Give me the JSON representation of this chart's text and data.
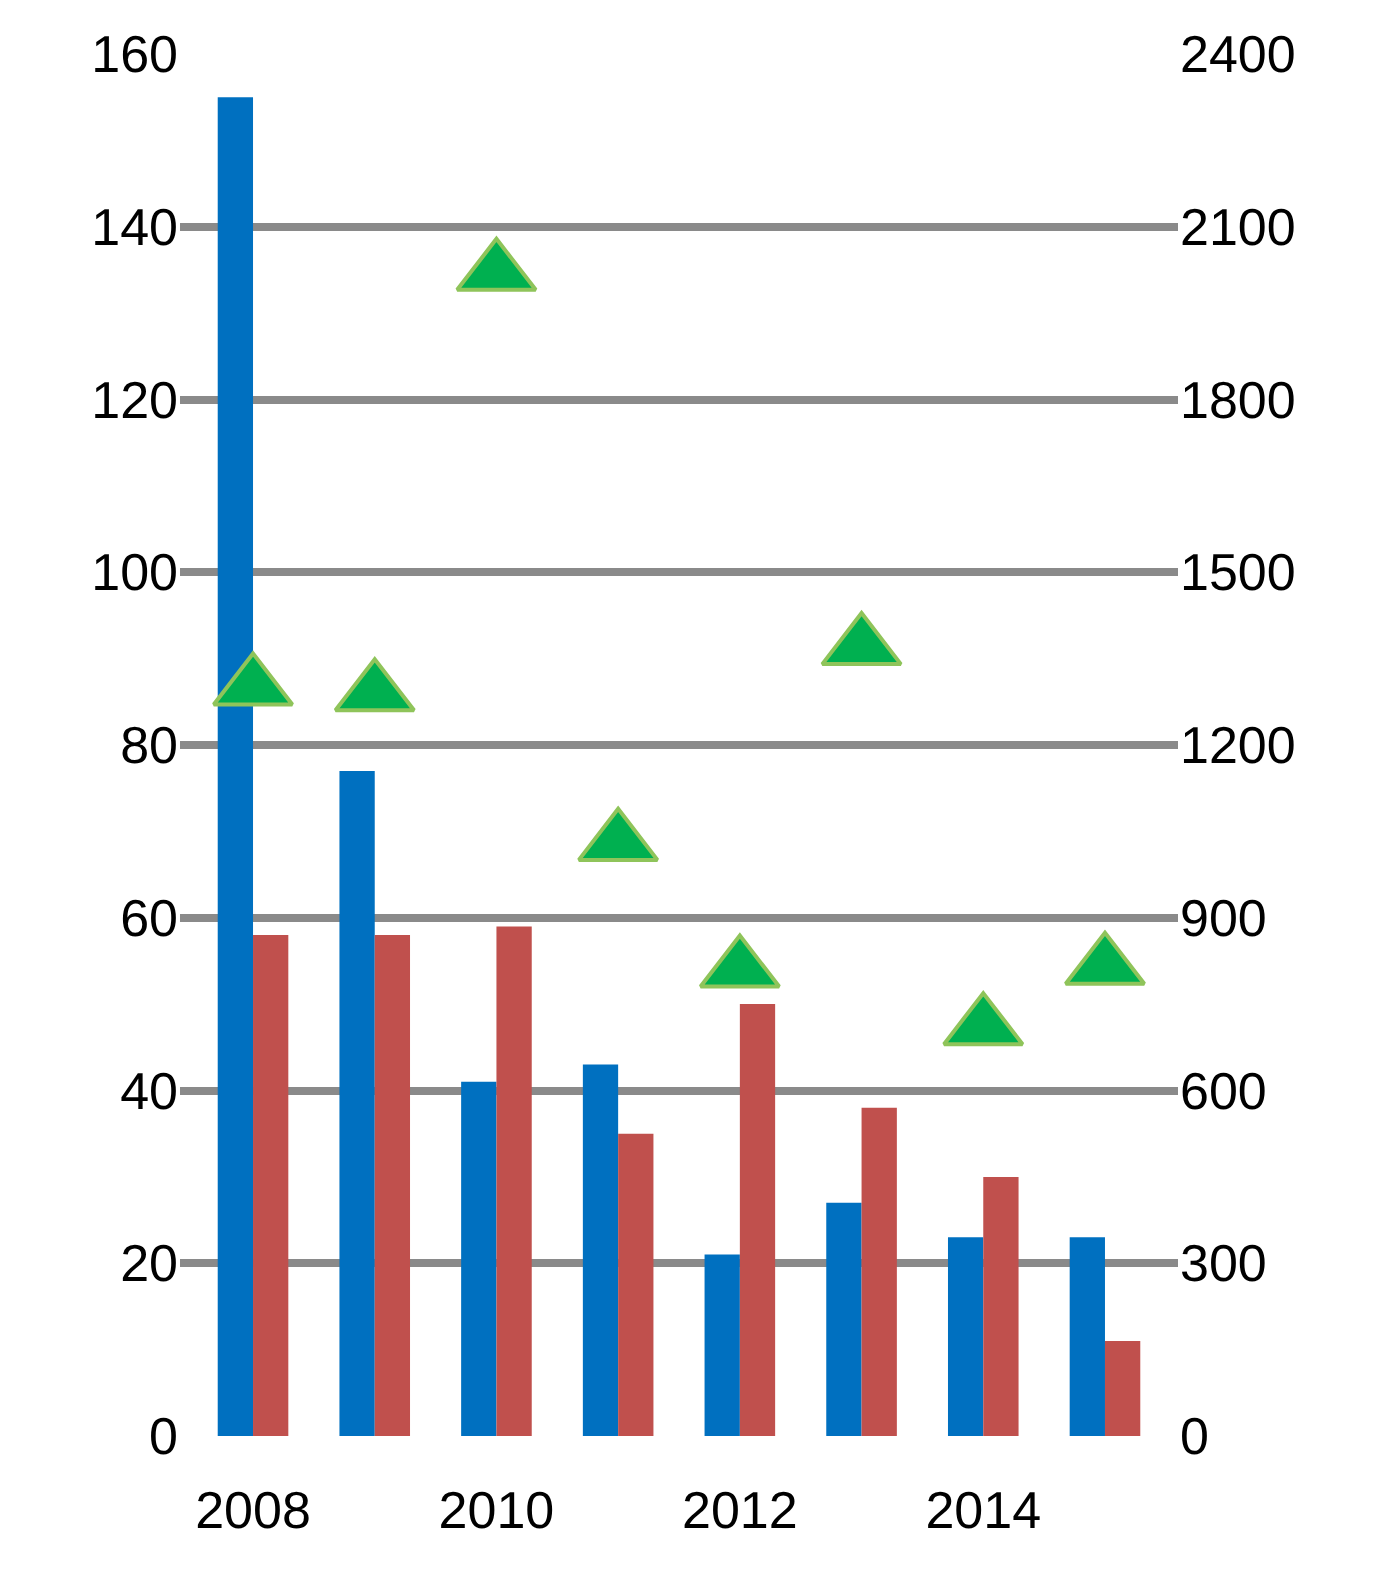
{
  "chart_data": {
    "type": "bar",
    "categories": [
      "2008",
      null,
      "2010",
      null,
      "2012",
      null,
      "2014",
      null
    ],
    "series": [
      {
        "color": "#0070c0",
        "values": [
          155,
          77,
          41,
          43,
          21,
          27,
          23,
          23
        ]
      },
      {
        "color": "#c0504d",
        "values": [
          58,
          58,
          59,
          35,
          50,
          38,
          30,
          11
        ]
      },
      {
        "type": "scatter",
        "axis": "y2",
        "color": "#00b050",
        "marker": "triangle",
        "values": [
          1300,
          1290,
          2020,
          1030,
          810,
          1370,
          710,
          815
        ]
      }
    ],
    "ylim": [
      0,
      160
    ],
    "yticks": [
      0,
      20,
      40,
      60,
      80,
      100,
      120,
      140,
      160
    ],
    "y2lim": [
      0,
      2400
    ],
    "y2ticks": [
      0,
      300,
      600,
      900,
      1200,
      1500,
      1800,
      2100,
      2400
    ],
    "grid": "y"
  }
}
